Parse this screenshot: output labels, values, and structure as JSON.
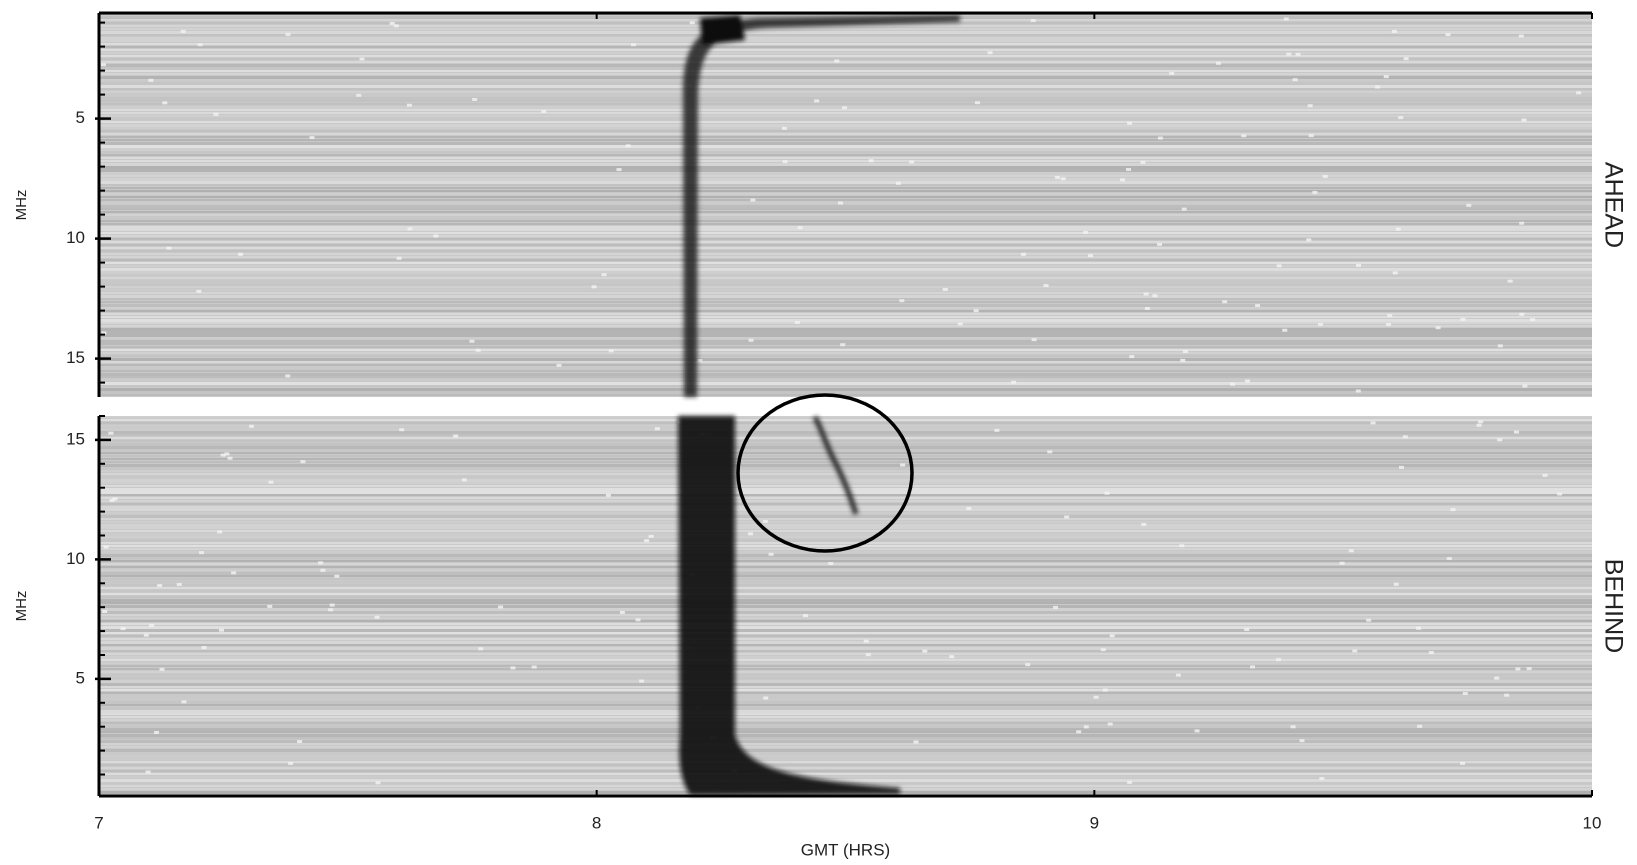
{
  "chart_data": [
    {
      "type": "spectrogram",
      "panel_label": "AHEAD",
      "ylabel": "MHz",
      "xlim": [
        7,
        10
      ],
      "xticks": [
        7,
        8,
        9,
        10
      ],
      "ylim": [
        0.6,
        16.6
      ],
      "y_inverted": true,
      "yticks": [
        5,
        10,
        15
      ],
      "yminorticks": [
        1,
        2,
        3,
        4,
        5,
        6,
        7,
        8,
        9,
        10,
        11,
        12,
        13,
        14,
        15,
        16
      ]
    },
    {
      "type": "spectrogram",
      "panel_label": "BEHIND",
      "ylabel": "MHz",
      "xlabel": "GMT (HRS)",
      "xlim": [
        7,
        10
      ],
      "xticks": [
        7,
        8,
        9,
        10
      ],
      "ylim": [
        0.1,
        16
      ],
      "y_inverted": false,
      "yticks": [
        5,
        10,
        15
      ],
      "yminorticks": [
        1,
        2,
        3,
        4,
        5,
        6,
        7,
        8,
        9,
        10,
        11,
        12,
        13,
        14,
        15,
        16
      ]
    }
  ]
}
